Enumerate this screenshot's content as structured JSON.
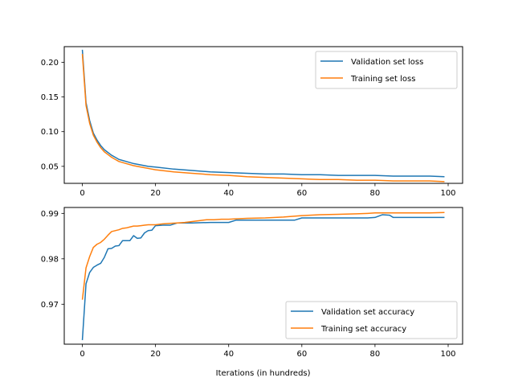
{
  "chart_data": [
    {
      "type": "line",
      "title": "",
      "xlabel": "",
      "ylabel": "",
      "xlim": [
        -4.95,
        103.95
      ],
      "ylim": [
        0.0255,
        0.2225
      ],
      "x_ticks": [
        "0",
        "20",
        "40",
        "60",
        "80",
        "100"
      ],
      "x_tick_values": [
        0,
        20,
        40,
        60,
        80,
        100
      ],
      "y_ticks": [
        "0.05",
        "0.10",
        "0.15",
        "0.20"
      ],
      "y_tick_values": [
        0.05,
        0.1,
        0.15,
        0.2
      ],
      "grid": false,
      "legend_position": "top-right",
      "series": [
        {
          "name": "Validation set loss",
          "color": "#1f77b4",
          "x": [
            0,
            1,
            2,
            3,
            4,
            5,
            6,
            7,
            8,
            9,
            10,
            12,
            14,
            16,
            18,
            20,
            25,
            30,
            35,
            40,
            45,
            50,
            55,
            60,
            65,
            70,
            75,
            80,
            85,
            90,
            95,
            99
          ],
          "y": [
            0.218,
            0.142,
            0.116,
            0.098,
            0.088,
            0.08,
            0.074,
            0.07,
            0.066,
            0.063,
            0.06,
            0.057,
            0.054,
            0.052,
            0.05,
            0.049,
            0.046,
            0.044,
            0.042,
            0.041,
            0.04,
            0.039,
            0.039,
            0.038,
            0.038,
            0.037,
            0.037,
            0.037,
            0.036,
            0.036,
            0.036,
            0.035
          ]
        },
        {
          "name": "Training set loss",
          "color": "#ff7f0e",
          "x": [
            0,
            1,
            2,
            3,
            4,
            5,
            6,
            7,
            8,
            9,
            10,
            12,
            14,
            16,
            18,
            20,
            25,
            30,
            35,
            40,
            45,
            50,
            55,
            60,
            65,
            70,
            75,
            80,
            85,
            90,
            95,
            99
          ],
          "y": [
            0.212,
            0.138,
            0.112,
            0.095,
            0.085,
            0.077,
            0.071,
            0.067,
            0.063,
            0.06,
            0.057,
            0.054,
            0.051,
            0.049,
            0.047,
            0.045,
            0.042,
            0.04,
            0.038,
            0.037,
            0.035,
            0.034,
            0.033,
            0.032,
            0.031,
            0.031,
            0.03,
            0.03,
            0.029,
            0.029,
            0.029,
            0.028
          ]
        }
      ]
    },
    {
      "type": "line",
      "title": "",
      "xlabel": "Iterations (in hundreds)",
      "ylabel": "",
      "xlim": [
        -4.95,
        103.95
      ],
      "ylim": [
        0.9612,
        0.9913
      ],
      "x_ticks": [
        "0",
        "20",
        "40",
        "60",
        "80",
        "100"
      ],
      "x_tick_values": [
        0,
        20,
        40,
        60,
        80,
        100
      ],
      "y_ticks": [
        "0.97",
        "0.98",
        "0.99"
      ],
      "y_tick_values": [
        0.97,
        0.98,
        0.99
      ],
      "grid": false,
      "legend_position": "bottom-right",
      "series": [
        {
          "name": "Validation set accuracy",
          "color": "#1f77b4",
          "x": [
            0,
            1,
            2,
            3,
            4,
            5,
            6,
            7,
            8,
            9,
            10,
            11,
            12,
            13,
            14,
            15,
            16,
            17,
            18,
            19,
            20,
            22,
            24,
            26,
            28,
            30,
            35,
            40,
            42,
            45,
            50,
            55,
            58,
            60,
            65,
            70,
            75,
            78,
            80,
            82,
            84,
            85,
            90,
            95,
            99
          ],
          "y": [
            0.9621,
            0.9745,
            0.977,
            0.9781,
            0.9786,
            0.979,
            0.9803,
            0.9822,
            0.9823,
            0.9828,
            0.9829,
            0.984,
            0.984,
            0.984,
            0.9851,
            0.9845,
            0.9846,
            0.9857,
            0.9862,
            0.9863,
            0.9873,
            0.9874,
            0.9874,
            0.9879,
            0.9879,
            0.9879,
            0.988,
            0.988,
            0.9885,
            0.9885,
            0.9885,
            0.9885,
            0.9885,
            0.989,
            0.989,
            0.989,
            0.989,
            0.989,
            0.9891,
            0.9897,
            0.9896,
            0.9891,
            0.9891,
            0.9891,
            0.9891
          ]
        },
        {
          "name": "Training set accuracy",
          "color": "#ff7f0e",
          "x": [
            0,
            1,
            2,
            3,
            4,
            5,
            6,
            7,
            8,
            9,
            10,
            11,
            12,
            13,
            14,
            15,
            16,
            17,
            18,
            19,
            20,
            22,
            24,
            26,
            28,
            30,
            32,
            34,
            36,
            38,
            40,
            42,
            45,
            50,
            55,
            60,
            65,
            70,
            75,
            78,
            80,
            85,
            90,
            95,
            99
          ],
          "y": [
            0.971,
            0.978,
            0.9805,
            0.9825,
            0.9832,
            0.9836,
            0.9843,
            0.9852,
            0.986,
            0.9862,
            0.9864,
            0.9867,
            0.9868,
            0.987,
            0.9872,
            0.9872,
            0.9873,
            0.9874,
            0.9875,
            0.9875,
            0.9875,
            0.9877,
            0.9878,
            0.9879,
            0.988,
            0.9882,
            0.9884,
            0.9886,
            0.9886,
            0.9887,
            0.9887,
            0.9888,
            0.9889,
            0.989,
            0.9892,
            0.9895,
            0.9897,
            0.9898,
            0.9899,
            0.99,
            0.9901,
            0.9901,
            0.9901,
            0.9901,
            0.9902
          ]
        }
      ]
    }
  ]
}
